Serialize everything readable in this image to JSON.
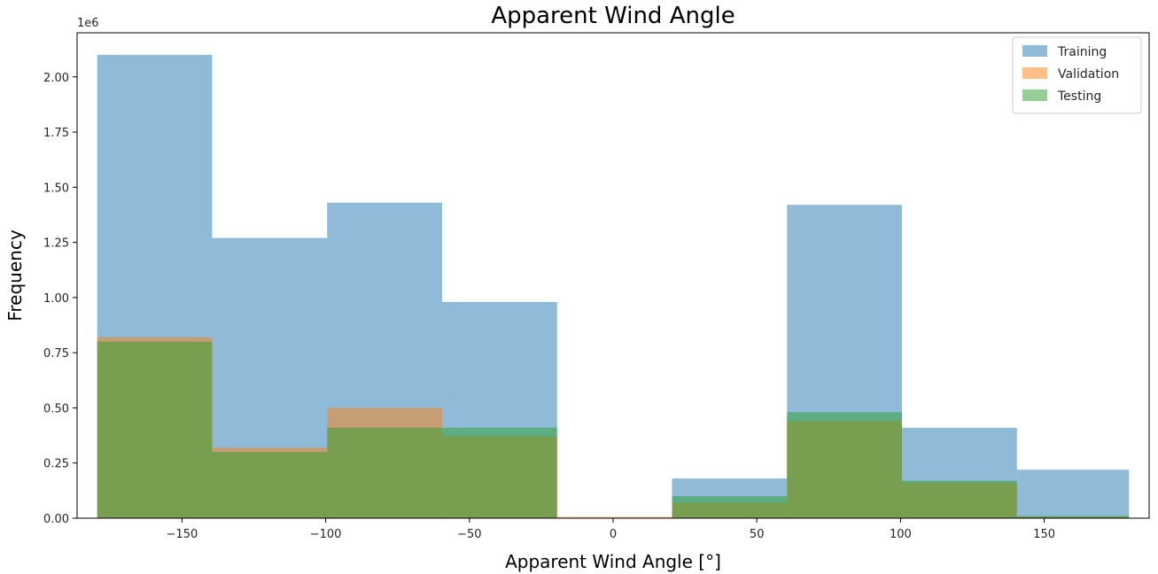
{
  "chart_data": {
    "type": "histogram",
    "title": "Apparent Wind Angle",
    "xlabel": "Apparent Wind Angle [°]",
    "ylabel": "Frequency",
    "y_multiplier_label": "1e6",
    "xlim": [
      -186.5,
      186.5
    ],
    "ylim": [
      0,
      2.2
    ],
    "x_ticks": [
      -150,
      -100,
      -50,
      0,
      50,
      100,
      150
    ],
    "x_tick_labels": [
      "−150",
      "−100",
      "−50",
      "0",
      "50",
      "100",
      "150"
    ],
    "y_ticks": [
      0,
      0.25,
      0.5,
      0.75,
      1.0,
      1.25,
      1.5,
      1.75,
      2.0
    ],
    "y_tick_labels": [
      "0.00",
      "0.25",
      "0.50",
      "0.75",
      "1.00",
      "1.25",
      "1.50",
      "1.75",
      "2.00"
    ],
    "bin_edges": [
      -179.5,
      -139.5,
      -99.5,
      -59.5,
      -19.5,
      20.5,
      60.5,
      100.5,
      140.5,
      179.5
    ],
    "series": [
      {
        "name": "Training",
        "color": "#1f77b4",
        "opacity": 0.5,
        "values": [
          2.1,
          1.27,
          1.43,
          0.98,
          0.0,
          0.18,
          1.42,
          0.41,
          0.22
        ]
      },
      {
        "name": "Validation",
        "color": "#ff7f0e",
        "opacity": 0.5,
        "values": [
          0.82,
          0.32,
          0.5,
          0.37,
          0.006,
          0.07,
          0.44,
          0.16,
          0.008
        ]
      },
      {
        "name": "Testing",
        "color": "#2ca02c",
        "opacity": 0.5,
        "values": [
          0.8,
          0.3,
          0.41,
          0.41,
          0.0,
          0.1,
          0.48,
          0.17,
          0.01
        ]
      }
    ],
    "legend_position": "top-right",
    "grid": false
  }
}
